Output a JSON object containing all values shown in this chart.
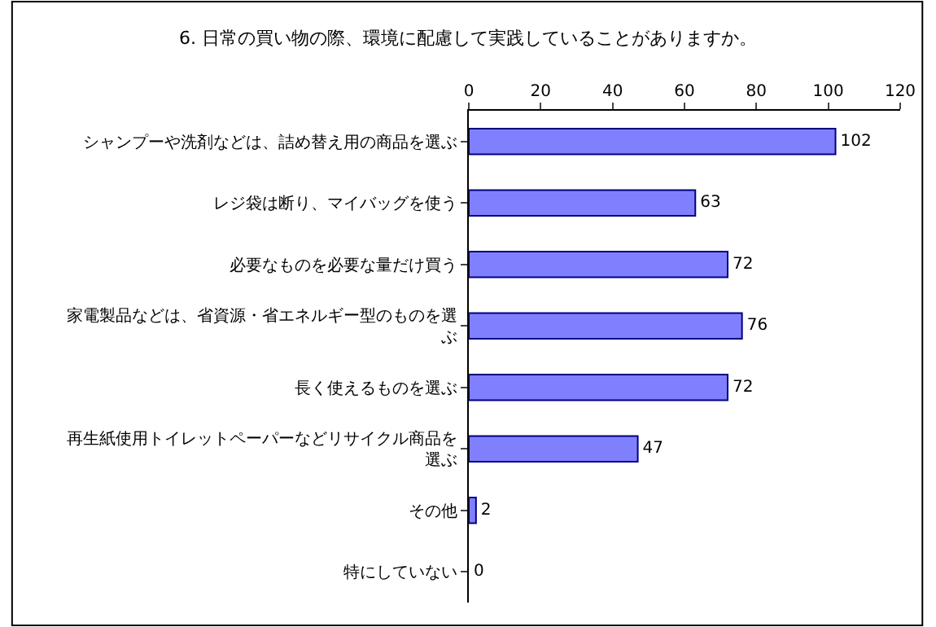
{
  "chart_data": {
    "type": "bar",
    "orientation": "horizontal",
    "title": "6. 日常の買い物の際、環境に配慮して実践していることがありますか。",
    "categories": [
      "シャンプーや洗剤などは、詰め替え用の商品を選ぶ",
      "レジ袋は断り、マイバッグを使う",
      "必要なものを必要な量だけ買う",
      "家電製品などは、省資源・省エネルギー型のものを選ぶ",
      "長く使えるものを選ぶ",
      "再生紙使用トイレットペーパーなどリサイクル商品を選ぶ",
      "その他",
      "特にしていない"
    ],
    "values": [
      102,
      63,
      72,
      76,
      72,
      47,
      2,
      0
    ],
    "color": "#8080ff",
    "xlim": [
      0,
      120
    ],
    "xticks": [
      0,
      20,
      40,
      60,
      80,
      100,
      120
    ],
    "data_labels": true,
    "grid": false,
    "legend": false
  }
}
